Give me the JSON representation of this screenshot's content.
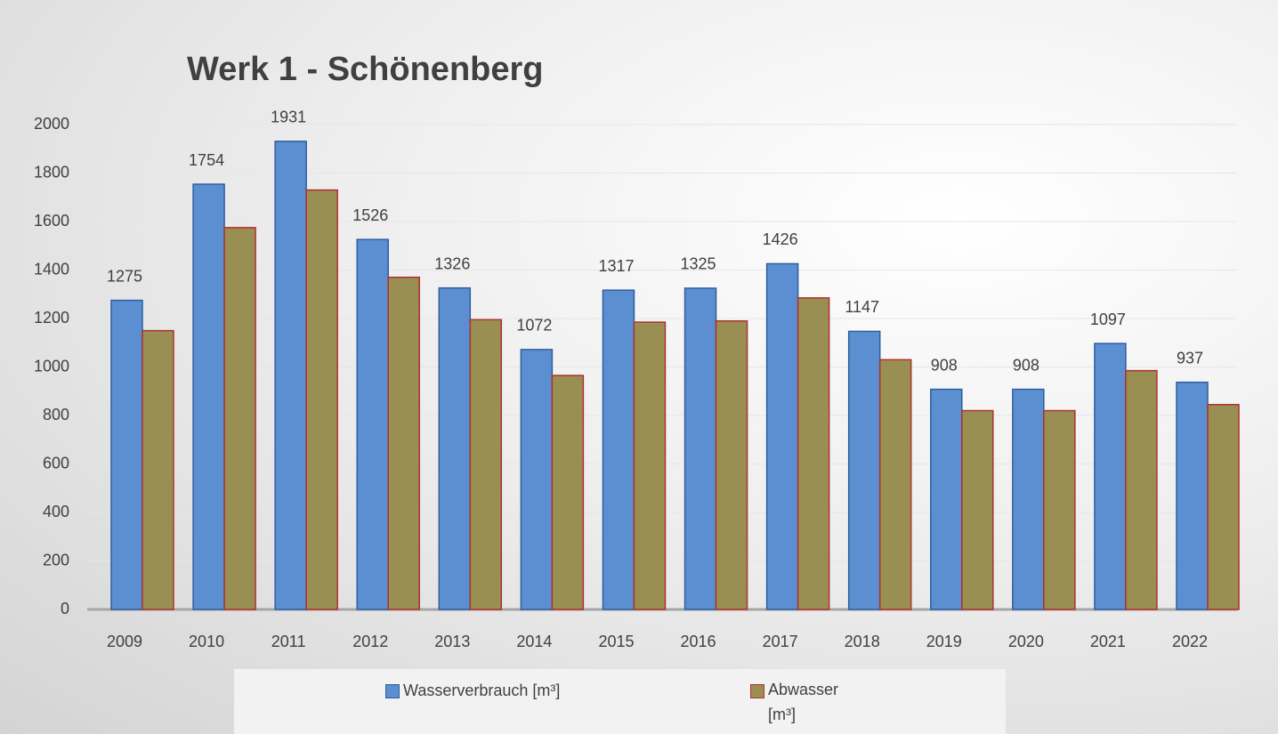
{
  "chart_data": {
    "type": "bar",
    "title": "Werk 1 - Schönenberg",
    "categories": [
      "2009",
      "2010",
      "2011",
      "2012",
      "2013",
      "2014",
      "2015",
      "2016",
      "2017",
      "2018",
      "2019",
      "2020",
      "2021",
      "2022"
    ],
    "series": [
      {
        "name": "Wasserverbrauch [m³]",
        "color": "#5b8fd1",
        "values": [
          1275,
          1754,
          1931,
          1526,
          1326,
          1072,
          1317,
          1325,
          1426,
          1147,
          908,
          908,
          1097,
          937
        ]
      },
      {
        "name": "Abwasser [m³]",
        "color": "#9a8f52",
        "values": [
          1150,
          1575,
          1730,
          1370,
          1195,
          965,
          1185,
          1190,
          1285,
          1030,
          820,
          820,
          985,
          845
        ]
      }
    ],
    "ylim": [
      0,
      2000
    ],
    "yticks": [
      0,
      200,
      400,
      600,
      800,
      1000,
      1200,
      1400,
      1600,
      1800,
      2000
    ],
    "grid": true,
    "legend": "bottom"
  }
}
